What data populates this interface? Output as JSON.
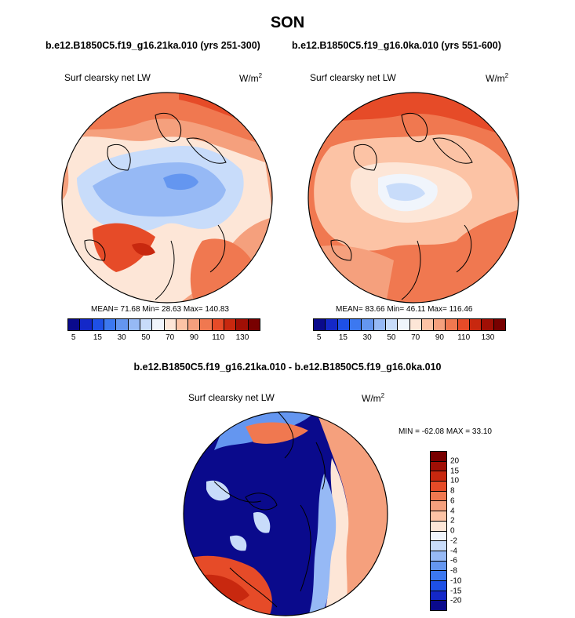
{
  "page": {
    "title": "SON"
  },
  "panels": [
    {
      "case_title": "b.e12.B1850C5.f19_g16.21ka.010 (yrs 251-300)",
      "variable": "Surf clearsky net LW",
      "units_base": "W/m",
      "units_exp": "2",
      "stats": "MEAN=  71.68  Min=  28.63  Max= 140.83"
    },
    {
      "case_title": "b.e12.B1850C5.f19_g16.0ka.010 (yrs 551-600)",
      "variable": "Surf clearsky net LW",
      "units_base": "W/m",
      "units_exp": "2",
      "stats": "MEAN=  83.66  Min=  46.11  Max= 116.46"
    }
  ],
  "diff_panel": {
    "title": "b.e12.B1850C5.f19_g16.21ka.010 - b.e12.B1850C5.f19_g16.0ka.010",
    "variable": "Surf clearsky net LW",
    "units_base": "W/m",
    "units_exp": "2",
    "stats": "MIN = -62.08 MAX =  33.10"
  },
  "colorbar_abs": {
    "colors": [
      "#0a0a8c",
      "#1428c8",
      "#1e50e6",
      "#3c78f0",
      "#6496f0",
      "#96b9f5",
      "#c8dcfa",
      "#f0f5fc",
      "#fde6d7",
      "#fcc3a5",
      "#f5a07d",
      "#f07850",
      "#e64b28",
      "#c8280f",
      "#a00f05",
      "#780000"
    ],
    "tick_labels": [
      "5",
      "15",
      "30",
      "50",
      "70",
      "90",
      "110",
      "130"
    ]
  },
  "colorbar_diff": {
    "colors": [
      "#780000",
      "#a00f05",
      "#c8280f",
      "#e64b28",
      "#f07850",
      "#f5a07d",
      "#fcc3a5",
      "#fde6d7",
      "#f0f5fc",
      "#c8dcfa",
      "#96b9f5",
      "#6496f0",
      "#3c78f0",
      "#1e50e6",
      "#1428c8",
      "#0a0a8c"
    ],
    "tick_labels": [
      "20",
      "15",
      "10",
      "8",
      "6",
      "4",
      "2",
      "0",
      "-2",
      "-4",
      "-6",
      "-8",
      "-10",
      "-15",
      "-20"
    ]
  },
  "map_colors": {
    "deep_blue": "#0a0a8c",
    "mid_blue": "#3c78f0",
    "light_blue": "#96b9f5",
    "pale_blue": "#c8dcfa",
    "near_white": "#f0f5fc",
    "pale_orange": "#fde6d7",
    "light_orange": "#fcc3a5",
    "orange": "#f5a07d",
    "red_orange": "#f07850",
    "red": "#e64b28",
    "dark_red": "#c8280f"
  }
}
